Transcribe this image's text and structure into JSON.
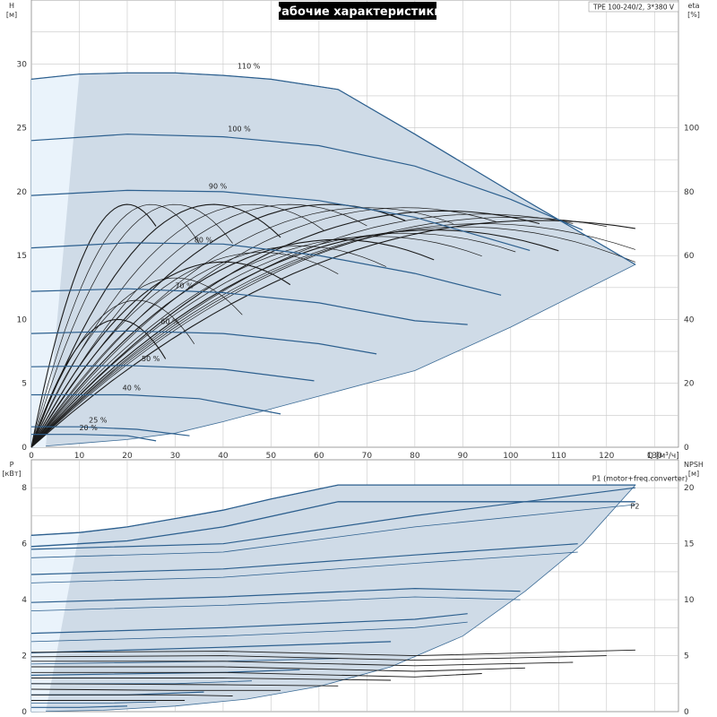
{
  "title": "Рабочие характеристики",
  "model": "TPE 100-240/2, 3*380 V",
  "colors": {
    "region_fill": "#cfdbe7",
    "region_light": "#eaf3fb",
    "region_edge": "#3b6b96",
    "head_curve": "#2c5f8e",
    "eff_curve": "#1a1a1a",
    "grid": "#c8c8c8",
    "title_bg": "#000000",
    "title_fg": "#ffffff"
  },
  "chart_data": [
    {
      "type": "line",
      "panel": "head-efficiency",
      "xlabel": "Q [м³/ч]",
      "ylabel": "H [м]",
      "y2label": "eta [%]",
      "xlim": [
        0,
        135
      ],
      "ylim": [
        0,
        35
      ],
      "y2lim": [
        0,
        140
      ],
      "x_ticks": [
        0,
        10,
        20,
        30,
        40,
        50,
        60,
        70,
        80,
        90,
        100,
        110,
        120,
        130
      ],
      "y_ticks": [
        0,
        5,
        10,
        15,
        20,
        25,
        30
      ],
      "y2_ticks": [
        0,
        20,
        40,
        60,
        80,
        100
      ],
      "grid": true,
      "series": [
        {
          "name": "110 %",
          "label_at": [
            43,
            29.5
          ],
          "x": [
            0,
            10,
            20,
            30,
            40,
            50,
            64,
            80,
            100,
            126
          ],
          "y": [
            28.8,
            29.2,
            29.3,
            29.3,
            29.1,
            28.8,
            28.0,
            24.5,
            20.0,
            14.3
          ]
        },
        {
          "name": "100 %",
          "label_at": [
            41,
            24.6
          ],
          "x": [
            0,
            20,
            40,
            60,
            80,
            100,
            115
          ],
          "y": [
            24.0,
            24.5,
            24.3,
            23.6,
            22.0,
            19.4,
            17.0
          ]
        },
        {
          "name": "90 %",
          "label_at": [
            37,
            20.1
          ],
          "x": [
            0,
            20,
            40,
            60,
            80,
            104
          ],
          "y": [
            19.7,
            20.1,
            20.0,
            19.3,
            18.0,
            15.4
          ]
        },
        {
          "name": "80 %",
          "label_at": [
            34,
            15.9
          ],
          "x": [
            0,
            20,
            40,
            60,
            80,
            98
          ],
          "y": [
            15.6,
            16.0,
            15.9,
            15.0,
            13.6,
            11.9
          ]
        },
        {
          "name": "70 %",
          "label_at": [
            30,
            12.3
          ],
          "x": [
            0,
            20,
            40,
            60,
            80,
            91
          ],
          "y": [
            12.2,
            12.4,
            12.1,
            11.3,
            9.9,
            9.6
          ]
        },
        {
          "name": "60 %",
          "label_at": [
            27,
            9.5
          ],
          "x": [
            0,
            20,
            40,
            60,
            72
          ],
          "y": [
            8.9,
            9.1,
            8.9,
            8.1,
            7.3
          ]
        },
        {
          "name": "50 %",
          "label_at": [
            23,
            6.6
          ],
          "x": [
            0,
            20,
            40,
            59
          ],
          "y": [
            6.3,
            6.4,
            6.1,
            5.2
          ]
        },
        {
          "name": "40 %",
          "label_at": [
            19,
            4.3
          ],
          "x": [
            0,
            20,
            35,
            52
          ],
          "y": [
            4.1,
            4.1,
            3.8,
            2.6
          ]
        },
        {
          "name": "25 %",
          "label_at": [
            12,
            1.8
          ],
          "x": [
            0,
            10,
            22,
            33
          ],
          "y": [
            1.6,
            1.6,
            1.4,
            0.9
          ]
        },
        {
          "name": "20 %",
          "label_at": [
            10,
            1.2
          ],
          "x": [
            0,
            10,
            20,
            26
          ],
          "y": [
            1.0,
            1.0,
            0.9,
            0.5
          ]
        }
      ],
      "operating_region": {
        "x": [
          0,
          10,
          20,
          30,
          40,
          50,
          64,
          80,
          100,
          126,
          100,
          80,
          60,
          40,
          30,
          20,
          10,
          0
        ],
        "y": [
          28.8,
          29.2,
          29.3,
          29.3,
          29.1,
          28.8,
          28.0,
          24.5,
          20.0,
          14.3,
          9.4,
          6.0,
          4.0,
          2.0,
          1.1,
          0.6,
          0.3,
          0
        ]
      },
      "eta_curves": [
        {
          "peak_q": 20,
          "peak_eta": 76,
          "end_q": 26
        },
        {
          "peak_q": 25,
          "peak_eta": 76,
          "end_q": 35
        },
        {
          "peak_q": 30,
          "peak_eta": 76,
          "end_q": 42
        },
        {
          "peak_q": 38,
          "peak_eta": 76,
          "end_q": 52
        },
        {
          "peak_q": 46,
          "peak_eta": 76,
          "end_q": 61
        },
        {
          "peak_q": 54,
          "peak_eta": 76,
          "end_q": 70
        },
        {
          "peak_q": 62,
          "peak_eta": 76,
          "end_q": 78
        },
        {
          "peak_q": 70,
          "peak_eta": 75,
          "end_q": 88
        },
        {
          "peak_q": 78,
          "peak_eta": 75,
          "end_q": 97
        },
        {
          "peak_q": 86,
          "peak_eta": 74,
          "end_q": 106
        },
        {
          "peak_q": 94,
          "peak_eta": 73,
          "end_q": 113
        },
        {
          "peak_q": 100,
          "peak_eta": 72,
          "end_q": 120
        },
        {
          "peak_q": 106,
          "peak_eta": 71,
          "end_q": 126
        },
        {
          "peak_q": 94,
          "peak_eta": 70,
          "end_q": 126
        },
        {
          "peak_q": 90,
          "peak_eta": 69,
          "end_q": 126
        },
        {
          "peak_q": 84,
          "peak_eta": 68,
          "end_q": 110
        },
        {
          "peak_q": 78,
          "peak_eta": 67,
          "end_q": 101
        },
        {
          "peak_q": 72,
          "peak_eta": 66,
          "end_q": 94
        },
        {
          "peak_q": 64,
          "peak_eta": 65,
          "end_q": 84
        },
        {
          "peak_q": 56,
          "peak_eta": 63,
          "end_q": 74
        },
        {
          "peak_q": 48,
          "peak_eta": 61,
          "end_q": 64
        },
        {
          "peak_q": 40,
          "peak_eta": 58,
          "end_q": 54
        },
        {
          "peak_q": 30,
          "peak_eta": 53,
          "end_q": 44
        },
        {
          "peak_q": 22,
          "peak_eta": 46,
          "end_q": 34
        },
        {
          "peak_q": 18,
          "peak_eta": 40,
          "end_q": 28
        }
      ]
    },
    {
      "type": "line",
      "panel": "power-npsh",
      "xlabel": "Q [м³/ч]",
      "ylabel": "P [кВт]",
      "y2label": "NPSH [м]",
      "xlim": [
        0,
        135
      ],
      "ylim": [
        0,
        9
      ],
      "y2lim": [
        0,
        22.5
      ],
      "y_ticks": [
        0,
        2,
        4,
        6,
        8
      ],
      "y2_ticks": [
        0,
        5,
        10,
        15,
        20
      ],
      "grid": true,
      "series": [
        {
          "name": "P1 (motor+freq.converter)",
          "label_at": [
            117,
            8.25
          ],
          "x": [
            0,
            10,
            20,
            30,
            40,
            50,
            64,
            90,
            126
          ],
          "y": [
            6.3,
            6.4,
            6.6,
            6.9,
            7.2,
            7.6,
            8.1,
            8.1,
            8.1
          ]
        },
        {
          "name": "P2",
          "label_at": [
            125,
            7.25
          ],
          "x": [
            0,
            20,
            40,
            64,
            90,
            126
          ],
          "y": [
            5.9,
            6.1,
            6.6,
            7.5,
            7.5,
            7.5
          ]
        }
      ],
      "p_curves": [
        {
          "x": [
            0,
            40,
            80,
            126
          ],
          "y": [
            5.8,
            6.0,
            7.0,
            8.0
          ]
        },
        {
          "x": [
            0,
            40,
            80,
            126
          ],
          "y": [
            5.5,
            5.7,
            6.6,
            7.4
          ]
        },
        {
          "x": [
            0,
            40,
            80,
            114
          ],
          "y": [
            4.9,
            5.1,
            5.6,
            6.0
          ]
        },
        {
          "x": [
            0,
            40,
            80,
            114
          ],
          "y": [
            4.6,
            4.8,
            5.3,
            5.7
          ]
        },
        {
          "x": [
            0,
            40,
            80,
            102
          ],
          "y": [
            3.9,
            4.1,
            4.4,
            4.3
          ]
        },
        {
          "x": [
            0,
            40,
            80,
            102
          ],
          "y": [
            3.6,
            3.8,
            4.1,
            4.0
          ]
        },
        {
          "x": [
            0,
            40,
            80,
            91
          ],
          "y": [
            2.8,
            3.0,
            3.3,
            3.5
          ]
        },
        {
          "x": [
            0,
            40,
            80,
            91
          ],
          "y": [
            2.5,
            2.7,
            3.0,
            3.2
          ]
        },
        {
          "x": [
            0,
            40,
            75
          ],
          "y": [
            2.1,
            2.3,
            2.5
          ]
        },
        {
          "x": [
            0,
            40,
            64
          ],
          "y": [
            1.7,
            1.8,
            1.9
          ]
        },
        {
          "x": [
            0,
            40,
            56
          ],
          "y": [
            1.3,
            1.4,
            1.5
          ]
        },
        {
          "x": [
            0,
            30,
            46
          ],
          "y": [
            1.0,
            1.0,
            1.1
          ]
        },
        {
          "x": [
            0,
            20,
            36
          ],
          "y": [
            0.6,
            0.6,
            0.7
          ]
        },
        {
          "x": [
            0,
            15,
            26
          ],
          "y": [
            0.3,
            0.3,
            0.35
          ]
        },
        {
          "x": [
            0,
            10,
            20
          ],
          "y": [
            0.15,
            0.15,
            0.2
          ]
        }
      ],
      "npsh_curves": [
        {
          "x": [
            0,
            40,
            80,
            126
          ],
          "y": [
            5.3,
            5.4,
            5.0,
            5.5
          ]
        },
        {
          "x": [
            0,
            40,
            80,
            120
          ],
          "y": [
            4.9,
            5.0,
            4.6,
            5.0
          ]
        },
        {
          "x": [
            0,
            40,
            80,
            113
          ],
          "y": [
            4.5,
            4.5,
            4.1,
            4.4
          ]
        },
        {
          "x": [
            0,
            40,
            80,
            103
          ],
          "y": [
            4.0,
            4.0,
            3.6,
            3.9
          ]
        },
        {
          "x": [
            0,
            40,
            80,
            94
          ],
          "y": [
            3.5,
            3.5,
            3.1,
            3.4
          ]
        },
        {
          "x": [
            0,
            40,
            75
          ],
          "y": [
            3.0,
            3.0,
            2.8
          ]
        },
        {
          "x": [
            0,
            40,
            64
          ],
          "y": [
            2.5,
            2.4,
            2.3
          ]
        },
        {
          "x": [
            0,
            30,
            52
          ],
          "y": [
            2.0,
            1.9,
            1.9
          ]
        },
        {
          "x": [
            0,
            30,
            42
          ],
          "y": [
            1.5,
            1.5,
            1.4
          ]
        },
        {
          "x": [
            0,
            20,
            32
          ],
          "y": [
            1.0,
            1.0,
            1.0
          ]
        }
      ],
      "operating_region": {
        "x": [
          0,
          10,
          20,
          30,
          40,
          50,
          64,
          90,
          126,
          115,
          103,
          90,
          75,
          60,
          45,
          30,
          15,
          0
        ],
        "y": [
          6.3,
          6.4,
          6.6,
          6.9,
          7.2,
          7.6,
          8.1,
          8.1,
          8.1,
          6.0,
          4.3,
          2.7,
          1.6,
          0.9,
          0.45,
          0.2,
          0.05,
          0
        ]
      }
    }
  ]
}
